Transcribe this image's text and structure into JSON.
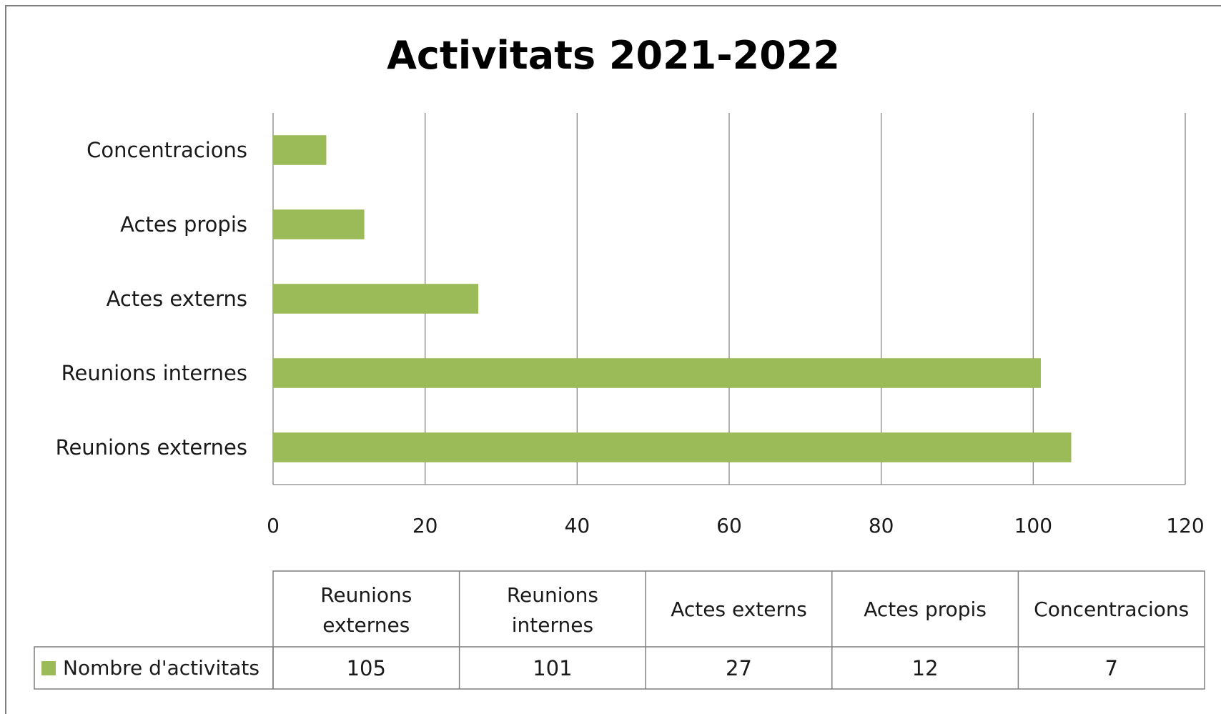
{
  "colors": {
    "bar": "#9bbb59",
    "grid": "#868686",
    "border": "#7f7f7f",
    "text": "#1a1a1a"
  },
  "chart_data": {
    "type": "bar",
    "orientation": "horizontal",
    "title": "Activitats 2021-2022",
    "categories": [
      "Reunions externes",
      "Reunions internes",
      "Actes externs",
      "Actes propis",
      "Concentracions"
    ],
    "series": [
      {
        "name": "Nombre d'activitats",
        "values": [
          105,
          101,
          27,
          12,
          7
        ]
      }
    ],
    "xlim": [
      0,
      120
    ],
    "x_ticks": [
      "0",
      "20",
      "40",
      "60",
      "80",
      "100",
      "120"
    ],
    "grid": true,
    "legend": "data-table",
    "data_table": {
      "header_lines": [
        [
          "Reunions",
          "externes"
        ],
        [
          "Reunions",
          "internes"
        ],
        [
          "Actes externs"
        ],
        [
          "Actes propis"
        ],
        [
          "Concentracions"
        ]
      ],
      "values": [
        "105",
        "101",
        "27",
        "12",
        "7"
      ],
      "legend_label": "Nombre d'activitats"
    }
  }
}
